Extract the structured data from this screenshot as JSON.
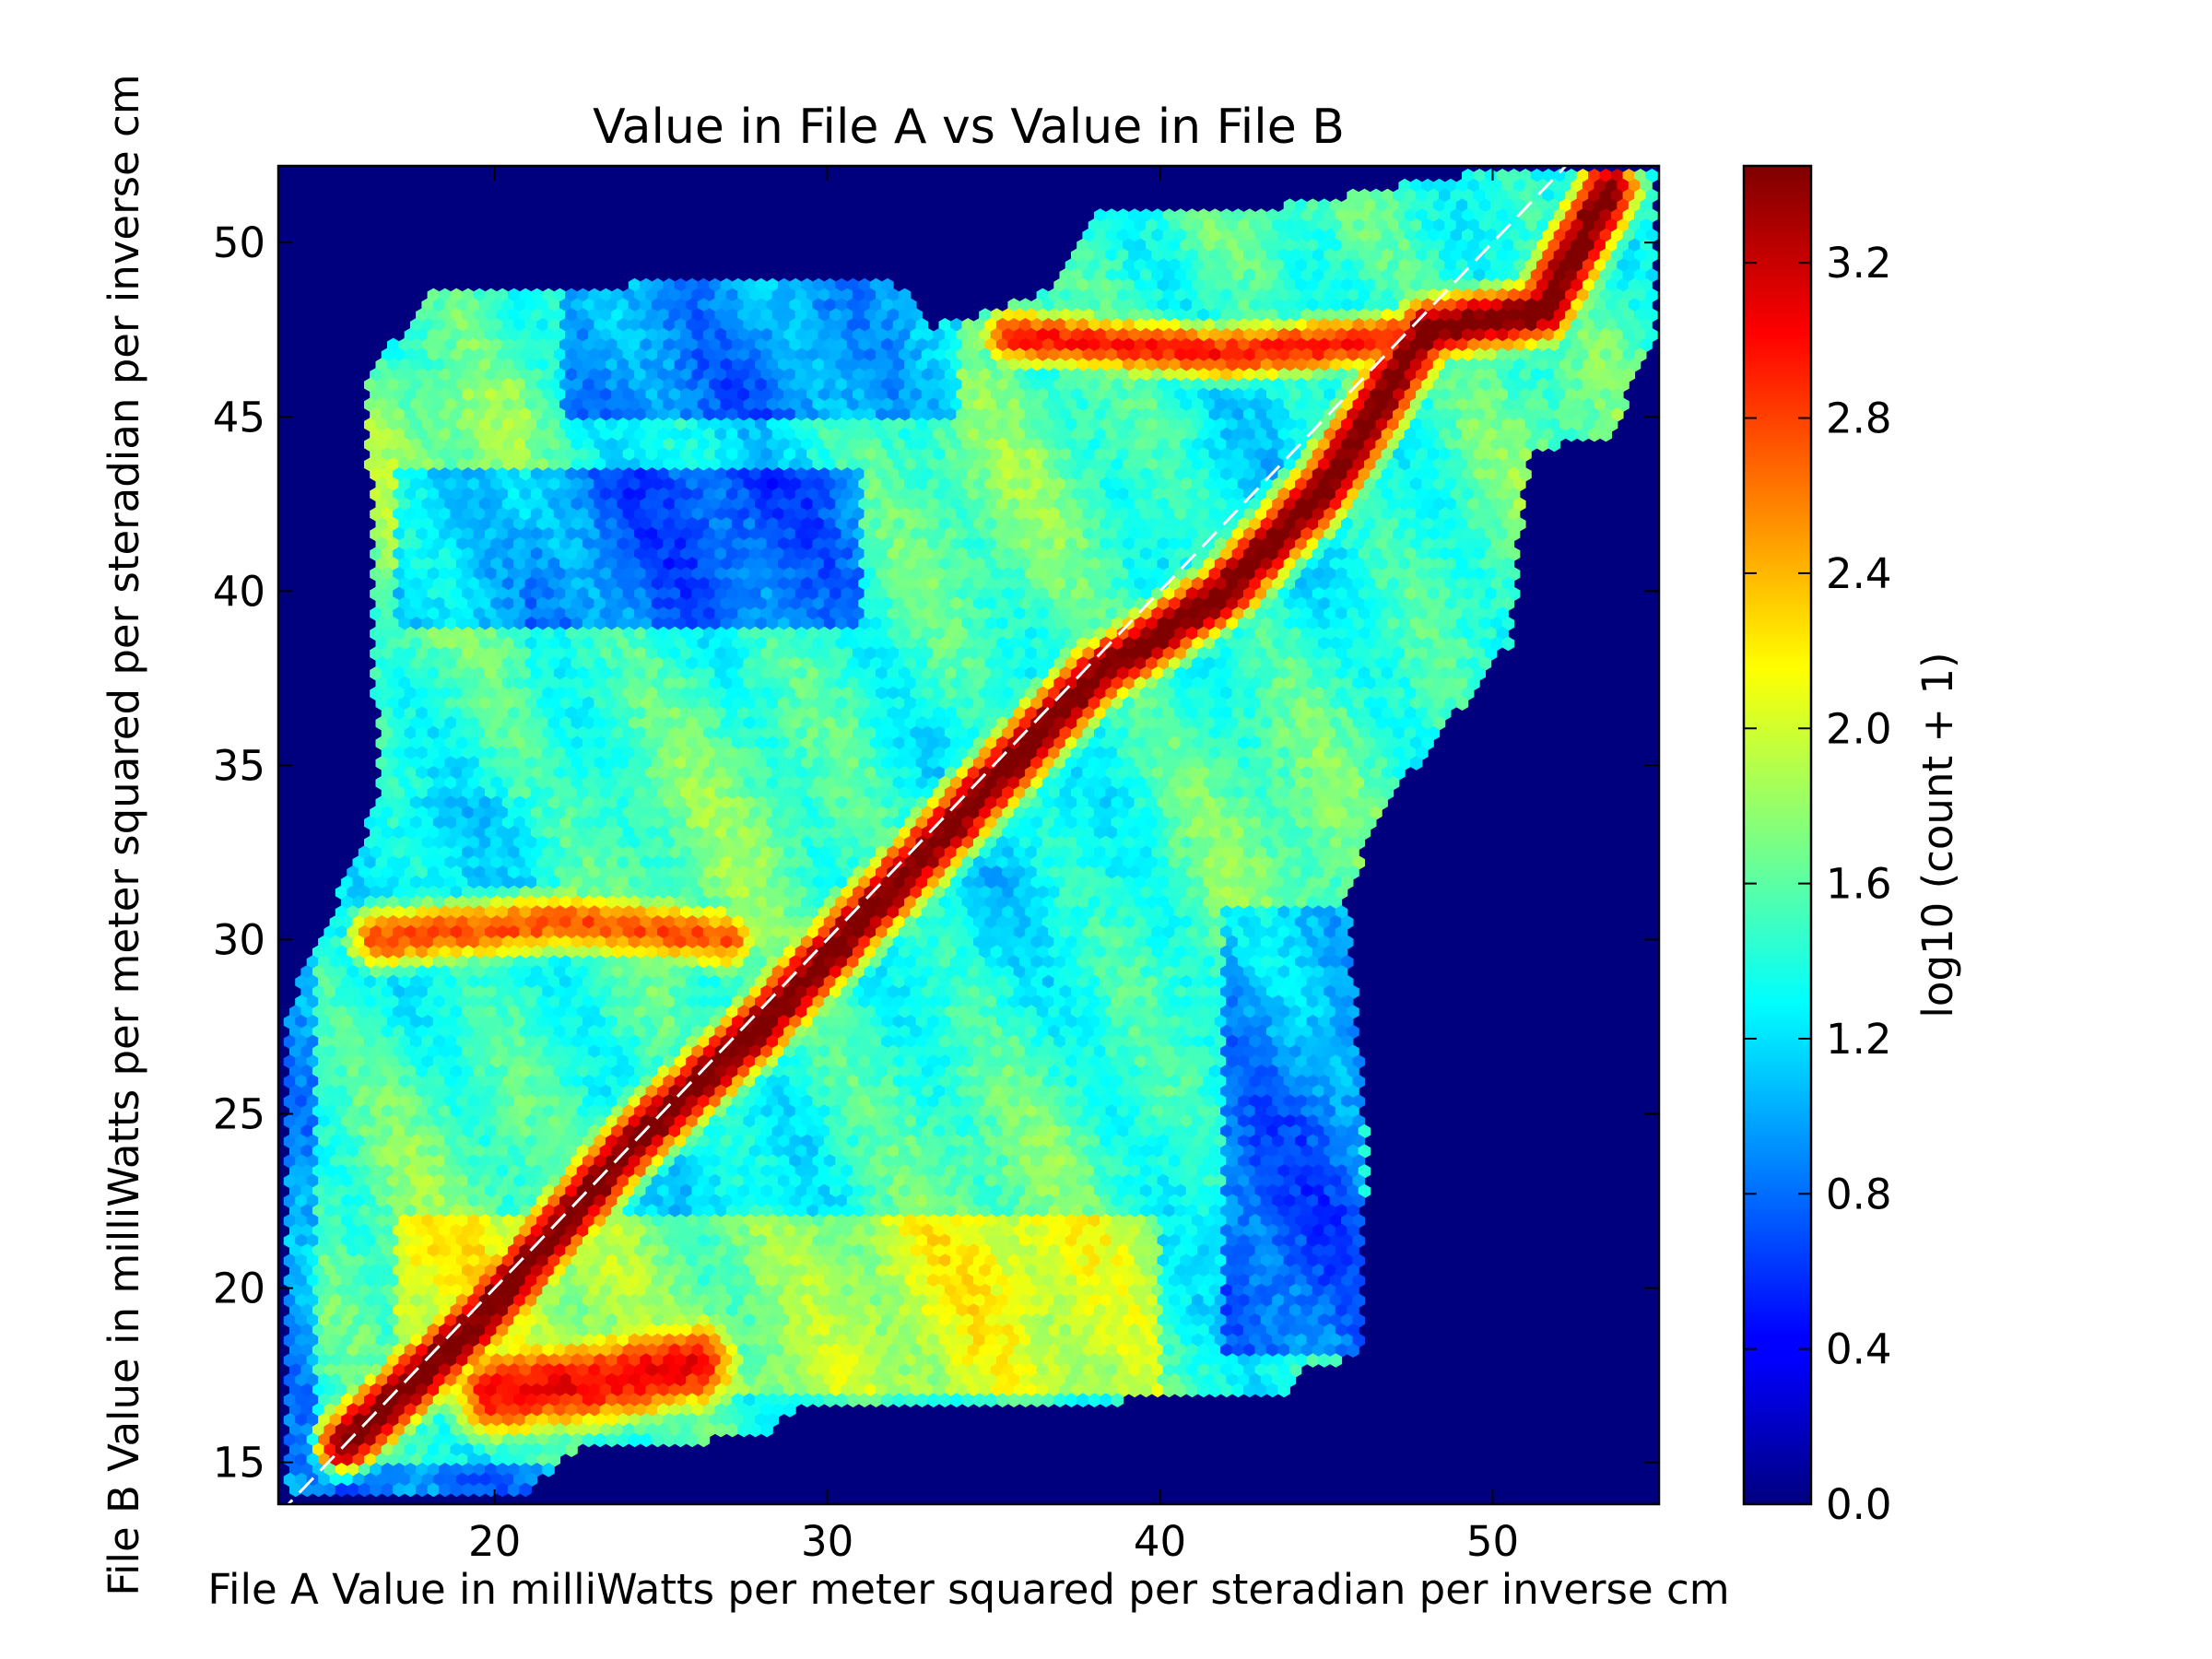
{
  "chart_data": {
    "type": "heatmap",
    "subtype": "hexbin",
    "title": "Value in File A vs Value in File B",
    "xlabel": "File A Value in milliWatts per meter squared per steradian per inverse cm",
    "ylabel": "File B Value in milliWatts per meter squared per steradian per inverse cm",
    "xlim": [
      13.5,
      55
    ],
    "ylim": [
      13.8,
      52.2
    ],
    "xticks": [
      "20",
      "30",
      "40",
      "50"
    ],
    "yticks": [
      "15",
      "20",
      "25",
      "30",
      "35",
      "40",
      "45",
      "50"
    ],
    "grid": false,
    "background_color": "#00007f",
    "colormap": "jet",
    "colorbar": {
      "label": "log10 (count + 1)",
      "range": [
        0,
        3.45
      ],
      "ticks": [
        "0.0",
        "0.4",
        "0.8",
        "1.2",
        "1.6",
        "2.0",
        "2.4",
        "2.8",
        "3.2"
      ]
    },
    "reference_line": {
      "style": "dashed",
      "color": "#ffffff",
      "from": [
        13.5,
        13.5
      ],
      "to": [
        52.2,
        52.2
      ]
    },
    "density_ridges": [
      {
        "name": "main diagonal",
        "points": [
          [
            15.5,
            15.5
          ],
          [
            19.5,
            19
          ],
          [
            24,
            24
          ],
          [
            28,
            27.5
          ],
          [
            33,
            32.5
          ],
          [
            38,
            37.5
          ],
          [
            42,
            40
          ],
          [
            45,
            43
          ],
          [
            48,
            47.5
          ],
          [
            51.5,
            48
          ],
          [
            53.5,
            51.5
          ]
        ],
        "peak": 3.4
      },
      {
        "name": "low lobe",
        "points": [
          [
            20,
            17
          ],
          [
            23,
            17.3
          ],
          [
            26,
            17.8
          ]
        ],
        "peak": 2.9
      },
      {
        "name": "upper band",
        "points": [
          [
            35.5,
            47.3
          ],
          [
            42,
            46.8
          ],
          [
            48,
            47.3
          ]
        ],
        "peak": 2.8
      },
      {
        "name": "mid band",
        "points": [
          [
            16.5,
            30
          ],
          [
            22,
            30.5
          ],
          [
            27,
            30
          ]
        ],
        "peak": 2.6
      }
    ]
  }
}
